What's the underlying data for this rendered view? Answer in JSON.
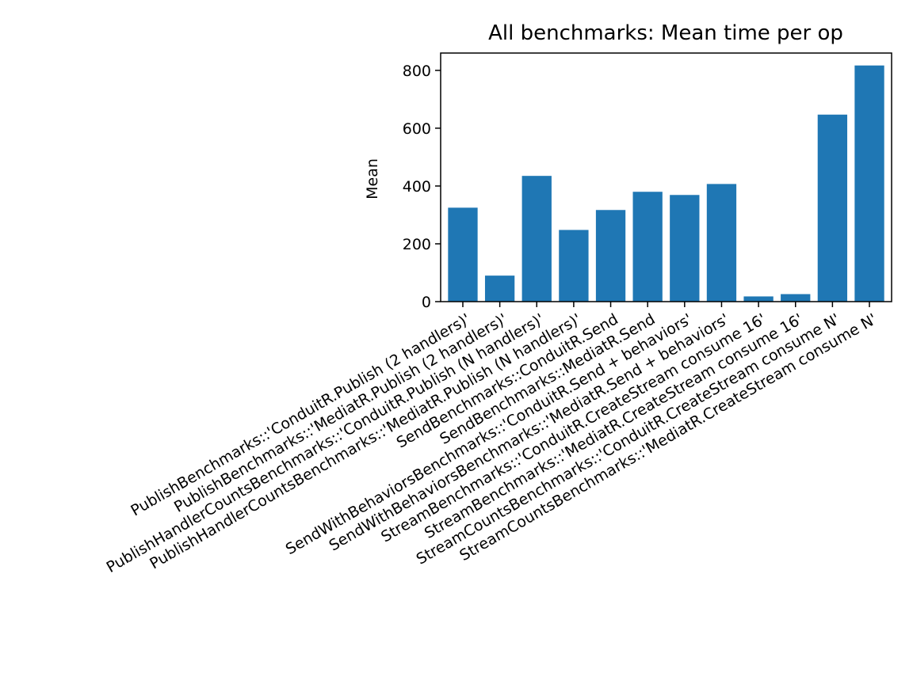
{
  "chart_data": {
    "type": "bar",
    "title": "All benchmarks: Mean time per op",
    "xlabel": "",
    "ylabel": "Mean",
    "ylim": [
      0,
      860
    ],
    "yticks": [
      0,
      200,
      400,
      600,
      800
    ],
    "grid": false,
    "bar_color": "#1f77b4",
    "categories": [
      "PublishBenchmarks::'ConduitR.Publish (2 handlers)'",
      "PublishBenchmarks::'MediatR.Publish (2 handlers)'",
      "PublishHandlerCountsBenchmarks::'ConduitR.Publish (N handlers)'",
      "PublishHandlerCountsBenchmarks::'MediatR.Publish (N handlers)'",
      "SendBenchmarks::ConduitR.Send",
      "SendBenchmarks::MediatR.Send",
      "SendWithBehaviorsBenchmarks::'ConduitR.Send + behaviors'",
      "SendWithBehaviorsBenchmarks::'MediatR.Send + behaviors'",
      "StreamBenchmarks::'ConduitR.CreateStream consume 16'",
      "StreamBenchmarks::'MediatR.CreateStream consume 16'",
      "StreamCountsBenchmarks::'ConduitR.CreateStream consume N'",
      "StreamCountsBenchmarks::'MediatR.CreateStream consume N'"
    ],
    "values": [
      325,
      90,
      435,
      248,
      317,
      380,
      369,
      407,
      18,
      26,
      647,
      817
    ]
  }
}
